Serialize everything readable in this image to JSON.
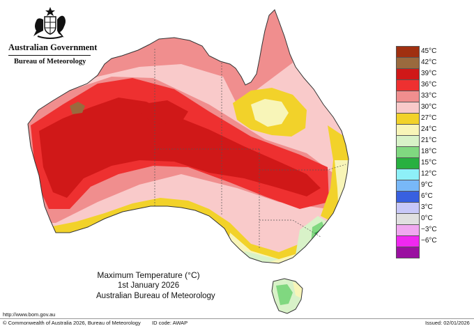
{
  "branding": {
    "government": "Australian Government",
    "bureau": "Bureau of Meteorology"
  },
  "map": {
    "title": "Maximum Temperature (°C)",
    "date": "1st January 2026",
    "source": "Australian Bureau of Meteorology"
  },
  "legend": [
    {
      "label": "45°C",
      "color": "#a03010"
    },
    {
      "label": "42°C",
      "color": "#9a6a3e"
    },
    {
      "label": "39°C",
      "color": "#d01818"
    },
    {
      "label": "36°C",
      "color": "#ee3030"
    },
    {
      "label": "33°C",
      "color": "#f08e8e"
    },
    {
      "label": "30°C",
      "color": "#f9caca"
    },
    {
      "label": "27°C",
      "color": "#f2d22a"
    },
    {
      "label": "24°C",
      "color": "#f8f5b8"
    },
    {
      "label": "21°C",
      "color": "#d8f2c8"
    },
    {
      "label": "18°C",
      "color": "#80d880"
    },
    {
      "label": "15°C",
      "color": "#28b040"
    },
    {
      "label": "12°C",
      "color": "#8ef0f8"
    },
    {
      "label": "9°C",
      "color": "#78b8f8"
    },
    {
      "label": "6°C",
      "color": "#3860e0"
    },
    {
      "label": "3°C",
      "color": "#c8c8f8"
    },
    {
      "label": "0°C",
      "color": "#e0e0e0"
    },
    {
      "label": "−3°C",
      "color": "#f0a8f0"
    },
    {
      "label": "−6°C",
      "color": "#f028f0"
    },
    {
      "label": "",
      "color": "#9a10a0"
    }
  ],
  "footer": {
    "url": "http://www.bom.gov.au",
    "copyright": "© Commonwealth of Australia 2026, Bureau of Meteorology",
    "id_code": "ID code: AWAP",
    "issued": "Issued: 02/01/2026"
  }
}
